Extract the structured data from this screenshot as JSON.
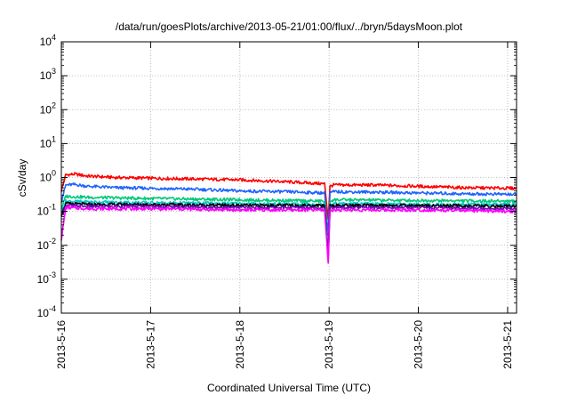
{
  "chart_data": {
    "type": "line",
    "title": "/data/run/goesPlots/archive/2013-05-21/01:00/flux/../bryn/5daysMoon.plot",
    "xlabel": "Coordinated Universal Time (UTC)",
    "ylabel": "cSv/day",
    "yscale": "log",
    "ylim": [
      0.0001,
      10000
    ],
    "xlim": [
      0,
      5.1
    ],
    "grid": true,
    "y_ticks": [
      {
        "value": 0.0001,
        "base": "10",
        "exp": "-4"
      },
      {
        "value": 0.001,
        "base": "10",
        "exp": "-3"
      },
      {
        "value": 0.01,
        "base": "10",
        "exp": "-2"
      },
      {
        "value": 0.1,
        "base": "10",
        "exp": "-1"
      },
      {
        "value": 1,
        "base": "10",
        "exp": "0"
      },
      {
        "value": 10,
        "base": "10",
        "exp": "1"
      },
      {
        "value": 100,
        "base": "10",
        "exp": "2"
      },
      {
        "value": 1000,
        "base": "10",
        "exp": "3"
      },
      {
        "value": 10000,
        "base": "10",
        "exp": "4"
      }
    ],
    "x_ticks": [
      {
        "value": 0,
        "label": "2013-5-16"
      },
      {
        "value": 1,
        "label": "2013-5-17"
      },
      {
        "value": 2,
        "label": "2013-5-18"
      },
      {
        "value": 3,
        "label": "2013-5-19"
      },
      {
        "value": 4,
        "label": "2013-5-20"
      },
      {
        "value": 5,
        "label": "2013-5-21"
      }
    ],
    "series": [
      {
        "color": "#ff0000",
        "x": [
          0,
          0.05,
          0.15,
          0.3,
          0.6,
          1.0,
          1.5,
          2.0,
          2.5,
          2.95,
          2.99,
          3.01,
          3.05,
          3.5,
          4.0,
          4.5,
          5.1
        ],
        "y": [
          0.4,
          1.2,
          1.25,
          1.1,
          1.0,
          0.95,
          0.9,
          0.85,
          0.75,
          0.65,
          0.06,
          0.55,
          0.6,
          0.6,
          0.55,
          0.5,
          0.48
        ]
      },
      {
        "color": "#1e64ff",
        "x": [
          0,
          0.05,
          0.15,
          0.3,
          0.6,
          1.0,
          1.5,
          2.0,
          2.5,
          2.95,
          2.99,
          3.01,
          3.05,
          3.5,
          4.0,
          4.5,
          5.1
        ],
        "y": [
          0.2,
          0.6,
          0.62,
          0.55,
          0.5,
          0.48,
          0.45,
          0.4,
          0.38,
          0.35,
          0.02,
          0.35,
          0.38,
          0.37,
          0.35,
          0.33,
          0.32
        ]
      },
      {
        "color": "#00c878",
        "x": [
          0,
          0.05,
          0.3,
          1.0,
          2.0,
          2.95,
          2.99,
          3.01,
          3.05,
          4.0,
          5.1
        ],
        "y": [
          0.12,
          0.28,
          0.26,
          0.24,
          0.22,
          0.2,
          0.006,
          0.2,
          0.22,
          0.21,
          0.2
        ]
      },
      {
        "color": "#00c8c8",
        "x": [
          0,
          0.05,
          0.3,
          1.0,
          2.0,
          2.95,
          2.99,
          3.01,
          3.05,
          4.0,
          5.1
        ],
        "y": [
          0.1,
          0.2,
          0.19,
          0.18,
          0.17,
          0.16,
          0.005,
          0.16,
          0.17,
          0.16,
          0.16
        ]
      },
      {
        "color": "#000000",
        "x": [
          0,
          0.05,
          0.3,
          1.0,
          2.0,
          2.95,
          2.99,
          3.01,
          3.05,
          4.0,
          5.1
        ],
        "y": [
          0.08,
          0.17,
          0.16,
          0.16,
          0.15,
          0.15,
          0.005,
          0.15,
          0.15,
          0.15,
          0.14
        ]
      },
      {
        "color": "#6a0dad",
        "x": [
          0,
          0.05,
          0.3,
          1.0,
          2.0,
          2.95,
          2.99,
          3.01,
          3.05,
          4.0,
          5.1
        ],
        "y": [
          0.07,
          0.15,
          0.14,
          0.14,
          0.13,
          0.13,
          0.004,
          0.13,
          0.13,
          0.13,
          0.12
        ]
      },
      {
        "color": "#ff00ff",
        "x": [
          0,
          0.05,
          0.3,
          1.0,
          2.0,
          2.95,
          2.99,
          3.01,
          3.05,
          4.0,
          5.1
        ],
        "y": [
          0.015,
          0.13,
          0.12,
          0.12,
          0.11,
          0.11,
          0.003,
          0.11,
          0.11,
          0.11,
          0.1
        ]
      }
    ]
  }
}
